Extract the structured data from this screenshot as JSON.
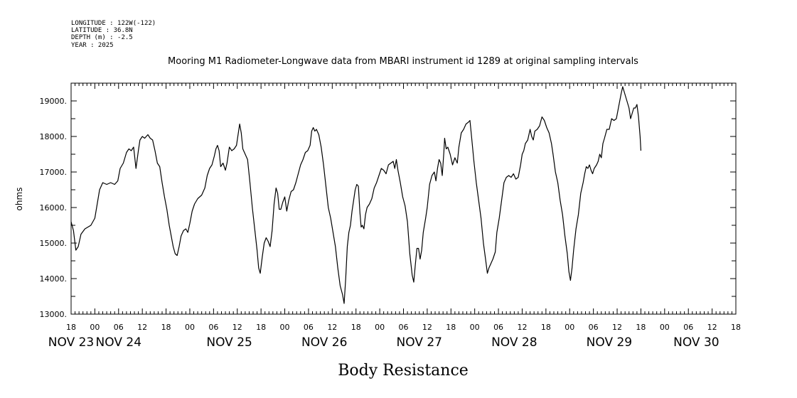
{
  "metadata": {
    "longitude": "LONGITUDE : 122W(-122)",
    "latitude": "LATITUDE : 36.8N",
    "depth": "DEPTH (m) : -2.5",
    "year": "YEAR : 2025"
  },
  "chart_data": {
    "type": "line",
    "title": "Mooring M1 Radiometer-Longwave data from MBARI instrument id 1289 at original sampling intervals",
    "xlabel": "Body Resistance",
    "ylabel": "ohms",
    "x_range_hours": [
      0,
      168
    ],
    "ylim": [
      13000,
      19500
    ],
    "y_ticks": [
      {
        "value": 13000,
        "label": "13000."
      },
      {
        "value": 14000,
        "label": "14000."
      },
      {
        "value": 15000,
        "label": "15000."
      },
      {
        "value": 16000,
        "label": "16000."
      },
      {
        "value": 17000,
        "label": "17000."
      },
      {
        "value": 18000,
        "label": "18000."
      },
      {
        "value": 19000,
        "label": "19000."
      }
    ],
    "x_hour_ticks": [
      {
        "h": 0,
        "label": "18"
      },
      {
        "h": 6,
        "label": "00"
      },
      {
        "h": 12,
        "label": "06"
      },
      {
        "h": 18,
        "label": "12"
      },
      {
        "h": 24,
        "label": "18"
      },
      {
        "h": 30,
        "label": "00"
      },
      {
        "h": 36,
        "label": "06"
      },
      {
        "h": 42,
        "label": "12"
      },
      {
        "h": 48,
        "label": "18"
      },
      {
        "h": 54,
        "label": "00"
      },
      {
        "h": 60,
        "label": "06"
      },
      {
        "h": 66,
        "label": "12"
      },
      {
        "h": 72,
        "label": "18"
      },
      {
        "h": 78,
        "label": "00"
      },
      {
        "h": 84,
        "label": "06"
      },
      {
        "h": 90,
        "label": "12"
      },
      {
        "h": 96,
        "label": "18"
      },
      {
        "h": 102,
        "label": "00"
      },
      {
        "h": 108,
        "label": "06"
      },
      {
        "h": 114,
        "label": "12"
      },
      {
        "h": 120,
        "label": "18"
      },
      {
        "h": 126,
        "label": "00"
      },
      {
        "h": 132,
        "label": "06"
      },
      {
        "h": 138,
        "label": "12"
      },
      {
        "h": 144,
        "label": "18"
      },
      {
        "h": 150,
        "label": "00"
      },
      {
        "h": 156,
        "label": "06"
      },
      {
        "h": 162,
        "label": "12"
      },
      {
        "h": 168,
        "label": "18"
      }
    ],
    "x_date_labels": [
      {
        "h": 0,
        "label": "NOV 23"
      },
      {
        "h": 12,
        "label": "NOV 24"
      },
      {
        "h": 40,
        "label": "NOV 25"
      },
      {
        "h": 64,
        "label": "NOV 26"
      },
      {
        "h": 88,
        "label": "NOV 27"
      },
      {
        "h": 112,
        "label": "NOV 28"
      },
      {
        "h": 136,
        "label": "NOV 29"
      },
      {
        "h": 158,
        "label": "NOV 30"
      }
    ],
    "series": [
      {
        "points": [
          [
            0,
            15600
          ],
          [
            0.6,
            15350
          ],
          [
            1.2,
            14800
          ],
          [
            1.8,
            14900
          ],
          [
            2.5,
            15250
          ],
          [
            3.5,
            15400
          ],
          [
            5,
            15500
          ],
          [
            6,
            15700
          ],
          [
            6.6,
            16100
          ],
          [
            7.2,
            16500
          ],
          [
            8,
            16700
          ],
          [
            9,
            16650
          ],
          [
            10,
            16700
          ],
          [
            11,
            16650
          ],
          [
            11.8,
            16750
          ],
          [
            12.4,
            17100
          ],
          [
            13.2,
            17250
          ],
          [
            14,
            17550
          ],
          [
            14.6,
            17650
          ],
          [
            15.2,
            17600
          ],
          [
            15.8,
            17700
          ],
          [
            16.4,
            17100
          ],
          [
            17,
            17600
          ],
          [
            17.4,
            17900
          ],
          [
            18,
            18000
          ],
          [
            18.6,
            17950
          ],
          [
            19.4,
            18050
          ],
          [
            20,
            17950
          ],
          [
            20.6,
            17900
          ],
          [
            21.2,
            17600
          ],
          [
            21.8,
            17250
          ],
          [
            22.4,
            17150
          ],
          [
            23,
            16700
          ],
          [
            23.6,
            16300
          ],
          [
            24.2,
            15950
          ],
          [
            24.8,
            15500
          ],
          [
            25.3,
            15200
          ],
          [
            25.8,
            14900
          ],
          [
            26.3,
            14700
          ],
          [
            26.8,
            14650
          ],
          [
            27.3,
            14900
          ],
          [
            27.8,
            15200
          ],
          [
            28.4,
            15350
          ],
          [
            29,
            15400
          ],
          [
            29.5,
            15300
          ],
          [
            30,
            15550
          ],
          [
            30.6,
            15900
          ],
          [
            31.2,
            16100
          ],
          [
            32,
            16250
          ],
          [
            33,
            16350
          ],
          [
            33.8,
            16550
          ],
          [
            34.4,
            16900
          ],
          [
            35,
            17100
          ],
          [
            35.6,
            17200
          ],
          [
            36.2,
            17450
          ],
          [
            36.6,
            17650
          ],
          [
            37,
            17750
          ],
          [
            37.4,
            17600
          ],
          [
            37.8,
            17150
          ],
          [
            38.4,
            17250
          ],
          [
            39,
            17050
          ],
          [
            39.4,
            17250
          ],
          [
            40,
            17700
          ],
          [
            40.6,
            17600
          ],
          [
            41.2,
            17650
          ],
          [
            41.8,
            17750
          ],
          [
            42.2,
            18050
          ],
          [
            42.6,
            18350
          ],
          [
            43,
            18100
          ],
          [
            43.4,
            17650
          ],
          [
            44,
            17500
          ],
          [
            44.6,
            17350
          ],
          [
            45.2,
            16700
          ],
          [
            45.8,
            16000
          ],
          [
            46.4,
            15400
          ],
          [
            47,
            14800
          ],
          [
            47.4,
            14300
          ],
          [
            47.8,
            14150
          ],
          [
            48.3,
            14600
          ],
          [
            48.8,
            15000
          ],
          [
            49.3,
            15150
          ],
          [
            49.8,
            15050
          ],
          [
            50.3,
            14900
          ],
          [
            50.8,
            15350
          ],
          [
            51.3,
            16100
          ],
          [
            51.8,
            16550
          ],
          [
            52.2,
            16400
          ],
          [
            52.6,
            15950
          ],
          [
            53,
            15950
          ],
          [
            53.5,
            16150
          ],
          [
            54,
            16300
          ],
          [
            54.5,
            15900
          ],
          [
            55,
            16200
          ],
          [
            55.6,
            16450
          ],
          [
            56.2,
            16500
          ],
          [
            56.8,
            16700
          ],
          [
            57.4,
            16950
          ],
          [
            58,
            17200
          ],
          [
            58.6,
            17350
          ],
          [
            59.2,
            17550
          ],
          [
            59.8,
            17600
          ],
          [
            60.4,
            17750
          ],
          [
            60.8,
            18150
          ],
          [
            61.2,
            18250
          ],
          [
            61.6,
            18150
          ],
          [
            62,
            18200
          ],
          [
            62.6,
            18050
          ],
          [
            63.2,
            17700
          ],
          [
            63.8,
            17200
          ],
          [
            64.4,
            16600
          ],
          [
            65,
            16000
          ],
          [
            65.6,
            15700
          ],
          [
            66.2,
            15300
          ],
          [
            66.8,
            14900
          ],
          [
            67.4,
            14300
          ],
          [
            68,
            13800
          ],
          [
            68.6,
            13550
          ],
          [
            69,
            13300
          ],
          [
            69.4,
            14000
          ],
          [
            69.8,
            14900
          ],
          [
            70.2,
            15300
          ],
          [
            70.6,
            15500
          ],
          [
            71,
            15900
          ],
          [
            71.4,
            16200
          ],
          [
            71.8,
            16500
          ],
          [
            72.2,
            16650
          ],
          [
            72.6,
            16600
          ],
          [
            73,
            15850
          ],
          [
            73.3,
            15450
          ],
          [
            73.6,
            15500
          ],
          [
            74,
            15400
          ],
          [
            74.4,
            15800
          ],
          [
            74.8,
            16000
          ],
          [
            75.4,
            16100
          ],
          [
            76,
            16250
          ],
          [
            76.6,
            16550
          ],
          [
            77.2,
            16700
          ],
          [
            77.8,
            16900
          ],
          [
            78.4,
            17100
          ],
          [
            79,
            17050
          ],
          [
            79.6,
            16950
          ],
          [
            80.2,
            17200
          ],
          [
            80.8,
            17250
          ],
          [
            81.4,
            17300
          ],
          [
            81.8,
            17100
          ],
          [
            82.2,
            17350
          ],
          [
            82.6,
            17050
          ],
          [
            83.2,
            16700
          ],
          [
            83.8,
            16300
          ],
          [
            84.4,
            16050
          ],
          [
            85,
            15600
          ],
          [
            85.6,
            14700
          ],
          [
            85.8,
            14500
          ],
          [
            86.2,
            14100
          ],
          [
            86.6,
            13900
          ],
          [
            87,
            14400
          ],
          [
            87.4,
            14850
          ],
          [
            87.8,
            14850
          ],
          [
            88.2,
            14550
          ],
          [
            88.6,
            14800
          ],
          [
            89,
            15300
          ],
          [
            89.6,
            15700
          ],
          [
            90,
            16000
          ],
          [
            90.6,
            16650
          ],
          [
            91.2,
            16900
          ],
          [
            91.8,
            17000
          ],
          [
            92.2,
            16750
          ],
          [
            92.6,
            17100
          ],
          [
            93,
            17350
          ],
          [
            93.4,
            17250
          ],
          [
            93.8,
            16900
          ],
          [
            94.2,
            17550
          ],
          [
            94.4,
            17950
          ],
          [
            94.8,
            17650
          ],
          [
            95.2,
            17700
          ],
          [
            95.8,
            17500
          ],
          [
            96.4,
            17200
          ],
          [
            97,
            17400
          ],
          [
            97.6,
            17250
          ],
          [
            98,
            17700
          ],
          [
            98.6,
            18100
          ],
          [
            99.2,
            18200
          ],
          [
            99.8,
            18350
          ],
          [
            100.4,
            18400
          ],
          [
            100.8,
            18450
          ],
          [
            101.2,
            18000
          ],
          [
            101.8,
            17300
          ],
          [
            102.4,
            16700
          ],
          [
            103,
            16200
          ],
          [
            103.6,
            15700
          ],
          [
            104.2,
            15000
          ],
          [
            104.8,
            14500
          ],
          [
            105.2,
            14150
          ],
          [
            105.6,
            14300
          ],
          [
            106,
            14400
          ],
          [
            106.6,
            14550
          ],
          [
            107.2,
            14750
          ],
          [
            107.6,
            15300
          ],
          [
            108.2,
            15700
          ],
          [
            108.8,
            16200
          ],
          [
            109.4,
            16700
          ],
          [
            110,
            16850
          ],
          [
            110.6,
            16900
          ],
          [
            111.2,
            16850
          ],
          [
            111.8,
            16950
          ],
          [
            112.4,
            16800
          ],
          [
            113,
            16850
          ],
          [
            113.6,
            17200
          ],
          [
            114,
            17500
          ],
          [
            114.4,
            17600
          ],
          [
            114.8,
            17800
          ],
          [
            115.4,
            17900
          ],
          [
            116,
            18200
          ],
          [
            116.4,
            18000
          ],
          [
            116.8,
            17900
          ],
          [
            117.2,
            18150
          ],
          [
            117.8,
            18200
          ],
          [
            118.4,
            18300
          ],
          [
            119,
            18550
          ],
          [
            119.6,
            18450
          ],
          [
            120.2,
            18250
          ],
          [
            120.8,
            18100
          ],
          [
            121.4,
            17800
          ],
          [
            121.8,
            17500
          ],
          [
            122.4,
            17000
          ],
          [
            123,
            16700
          ],
          [
            123.6,
            16200
          ],
          [
            124.2,
            15800
          ],
          [
            124.8,
            15200
          ],
          [
            125.4,
            14700
          ],
          [
            125.8,
            14200
          ],
          [
            126.2,
            13950
          ],
          [
            126.6,
            14300
          ],
          [
            127,
            14800
          ],
          [
            127.6,
            15400
          ],
          [
            128.2,
            15800
          ],
          [
            128.8,
            16400
          ],
          [
            129.4,
            16700
          ],
          [
            129.8,
            16950
          ],
          [
            130.2,
            17150
          ],
          [
            130.6,
            17100
          ],
          [
            131,
            17200
          ],
          [
            131.4,
            17050
          ],
          [
            131.8,
            16950
          ],
          [
            132.2,
            17100
          ],
          [
            132.8,
            17200
          ],
          [
            133.2,
            17300
          ],
          [
            133.6,
            17500
          ],
          [
            134,
            17400
          ],
          [
            134.4,
            17800
          ],
          [
            134.8,
            17950
          ],
          [
            135.4,
            18200
          ],
          [
            136,
            18200
          ],
          [
            136.6,
            18500
          ],
          [
            137.2,
            18450
          ],
          [
            137.8,
            18500
          ],
          [
            138.4,
            18850
          ],
          [
            139,
            19200
          ],
          [
            139.4,
            19400
          ],
          [
            139.8,
            19250
          ],
          [
            140.2,
            19100
          ],
          [
            140.6,
            18950
          ],
          [
            141,
            18800
          ],
          [
            141.4,
            18500
          ],
          [
            141.8,
            18650
          ],
          [
            142.2,
            18800
          ],
          [
            142.6,
            18800
          ],
          [
            143,
            18900
          ],
          [
            143.4,
            18550
          ],
          [
            143.8,
            18000
          ],
          [
            144,
            17600
          ]
        ]
      }
    ]
  }
}
